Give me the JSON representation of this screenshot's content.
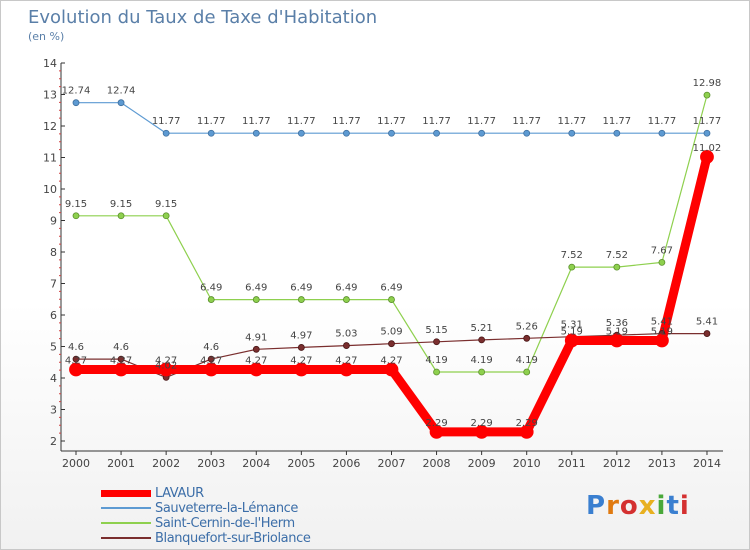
{
  "title": "Evolution du Taux de Taxe d'Habitation",
  "unit_label": "(en %)",
  "logo_text": "Proxiti",
  "chart_data": {
    "type": "line",
    "title": "Evolution du Taux de Taxe d'Habitation",
    "ylabel": "(en %)",
    "x": [
      "2000",
      "2001",
      "2002",
      "2003",
      "2004",
      "2005",
      "2006",
      "2007",
      "2008",
      "2009",
      "2010",
      "2011",
      "2012",
      "2013",
      "2014"
    ],
    "ylim": [
      2,
      14
    ],
    "yticks": [
      "2",
      "3",
      "4",
      "5",
      "6",
      "7",
      "8",
      "9",
      "10",
      "11",
      "12",
      "13",
      "14"
    ],
    "grid": false,
    "legend_position": "bottom-left",
    "series": [
      {
        "name": "LAVAUR",
        "color": "#ff0000",
        "values": [
          4.27,
          4.27,
          4.27,
          4.27,
          4.27,
          4.27,
          4.27,
          4.27,
          2.29,
          2.29,
          2.29,
          5.19,
          5.19,
          5.19,
          11.02
        ],
        "labels": [
          "4.27",
          "4.27",
          "4.27",
          "4.27",
          "4.27",
          "4.27",
          "4.27",
          "4.27",
          "2.29",
          "2.29",
          "2.29",
          "5.19",
          "5.19",
          "5.19",
          "11.02"
        ]
      },
      {
        "name": "Sauveterre-la-Lémance",
        "color": "#5d9ad2",
        "values": [
          12.74,
          12.74,
          11.77,
          11.77,
          11.77,
          11.77,
          11.77,
          11.77,
          11.77,
          11.77,
          11.77,
          11.77,
          11.77,
          11.77,
          11.77
        ],
        "labels": [
          "12.74",
          "12.74",
          "11.77",
          "11.77",
          "11.77",
          "11.77",
          "11.77",
          "11.77",
          "11.77",
          "11.77",
          "11.77",
          "11.77",
          "11.77",
          "11.77",
          "11.77"
        ]
      },
      {
        "name": "Saint-Cernin-de-l'Herm",
        "color": "#8ed04e",
        "values": [
          9.15,
          9.15,
          9.15,
          6.49,
          6.49,
          6.49,
          6.49,
          6.49,
          4.19,
          4.19,
          4.19,
          7.52,
          7.52,
          7.67,
          12.98
        ],
        "labels": [
          "9.15",
          "9.15",
          "9.15",
          "6.49",
          "6.49",
          "6.49",
          "6.49",
          "6.49",
          "4.19",
          "4.19",
          "4.19",
          "7.52",
          "7.52",
          "7.67",
          "12.98"
        ]
      },
      {
        "name": "Blanquefort-sur-Briolance",
        "color": "#7a2e2e",
        "values": [
          4.6,
          4.6,
          4.02,
          4.6,
          4.91,
          4.97,
          5.03,
          5.09,
          5.15,
          5.21,
          5.26,
          5.31,
          5.36,
          5.41,
          5.41
        ],
        "labels": [
          "4.6",
          "4.6",
          "4.02",
          "4.6",
          "4.91",
          "4.97",
          "5.03",
          "5.09",
          "5.15",
          "5.21",
          "5.26",
          "5.31",
          "5.36",
          "5.41",
          "5.41"
        ]
      }
    ]
  }
}
